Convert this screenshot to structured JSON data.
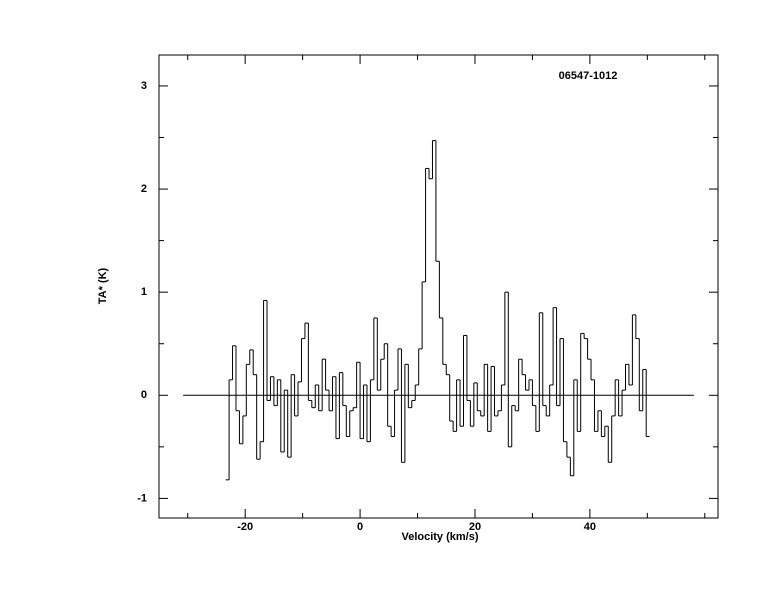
{
  "chart_data": {
    "type": "step",
    "title": "06547-1012",
    "x_label": "Velocity (km/s)",
    "y_label": "TA* (K)",
    "xlim": [
      -35,
      62.3
    ],
    "ylim": [
      -1.19,
      3.3
    ],
    "xticks": [
      -20,
      0,
      20,
      40
    ],
    "xminorticks": [
      -30,
      -10,
      10,
      30,
      50,
      60
    ],
    "yticks": [
      -1,
      0,
      1,
      2,
      3
    ],
    "yminorticks": [
      -0.5,
      0.5,
      1.5,
      2.5
    ],
    "baseline_x": [
      -30.8,
      58.1
    ],
    "baseline_y": 0,
    "color": "#000000",
    "x": [
      -23.1,
      -22.5,
      -21.9,
      -21.3,
      -20.7,
      -20.1,
      -19.5,
      -18.9,
      -18.3,
      -17.7,
      -17.1,
      -16.5,
      -15.9,
      -15.3,
      -14.7,
      -14.1,
      -13.5,
      -12.9,
      -12.3,
      -11.7,
      -11.1,
      -10.5,
      -9.9,
      -9.3,
      -8.7,
      -8.1,
      -7.5,
      -6.9,
      -6.3,
      -5.7,
      -5.1,
      -4.5,
      -3.9,
      -3.3,
      -2.7,
      -2.1,
      -1.5,
      -0.9,
      -0.3,
      0.3,
      0.9,
      1.5,
      2.1,
      2.7,
      3.3,
      3.9,
      4.5,
      5.1,
      5.7,
      6.3,
      6.9,
      7.5,
      8.1,
      8.7,
      9.3,
      9.9,
      10.5,
      11.1,
      11.7,
      12.3,
      12.9,
      13.5,
      14.1,
      14.7,
      15.3,
      15.9,
      16.5,
      17.1,
      17.7,
      18.3,
      18.9,
      19.5,
      20.1,
      20.7,
      21.3,
      21.9,
      22.5,
      23.1,
      23.7,
      24.3,
      24.9,
      25.5,
      26.1,
      26.7,
      27.3,
      27.9,
      28.5,
      29.1,
      29.7,
      30.3,
      30.9,
      31.5,
      32.1,
      32.7,
      33.3,
      33.9,
      34.5,
      35.1,
      35.7,
      36.3,
      36.9,
      37.5,
      38.1,
      38.7,
      39.3,
      39.9,
      40.5,
      41.1,
      41.7,
      42.3,
      42.9,
      43.5,
      44.1,
      44.7,
      45.3,
      45.9,
      46.5,
      47.1,
      47.7,
      48.3,
      48.9,
      49.5,
      50.1
    ],
    "values": [
      -0.82,
      0.15,
      0.48,
      -0.15,
      -0.47,
      -0.2,
      0.3,
      0.44,
      0.2,
      -0.62,
      -0.45,
      0.92,
      -0.05,
      0.18,
      -0.1,
      0.15,
      -0.55,
      0.05,
      -0.6,
      0.2,
      -0.2,
      0.13,
      0.55,
      0.7,
      -0.05,
      -0.12,
      0.1,
      -0.15,
      0.35,
      0.05,
      -0.15,
      0.18,
      -0.42,
      0.22,
      -0.1,
      -0.4,
      -0.15,
      -0.12,
      0.32,
      -0.42,
      0.1,
      -0.45,
      0.15,
      0.75,
      0.05,
      0.35,
      0.5,
      -0.3,
      -0.4,
      0.05,
      0.45,
      -0.65,
      0.3,
      -0.12,
      -0.05,
      0.1,
      0.45,
      1.1,
      2.2,
      2.1,
      2.47,
      1.3,
      0.75,
      0.3,
      0.2,
      -0.25,
      -0.35,
      0.15,
      -0.3,
      0.58,
      -0.05,
      -0.3,
      0.12,
      -0.15,
      -0.2,
      0.3,
      -0.35,
      0.28,
      -0.2,
      -0.15,
      0.1,
      1.0,
      -0.5,
      -0.1,
      -0.15,
      0.35,
      0.2,
      0.05,
      0.15,
      -0.1,
      -0.35,
      0.8,
      -0.1,
      -0.2,
      0.1,
      0.85,
      -0.1,
      0.55,
      -0.45,
      -0.6,
      -0.78,
      0.15,
      -0.35,
      0.6,
      0.55,
      0.35,
      0.15,
      -0.35,
      -0.15,
      -0.4,
      -0.3,
      -0.65,
      -0.2,
      0.15,
      -0.2,
      0.05,
      0.3,
      0.1,
      0.78,
      0.55,
      -0.15,
      0.25,
      -0.4
    ]
  }
}
